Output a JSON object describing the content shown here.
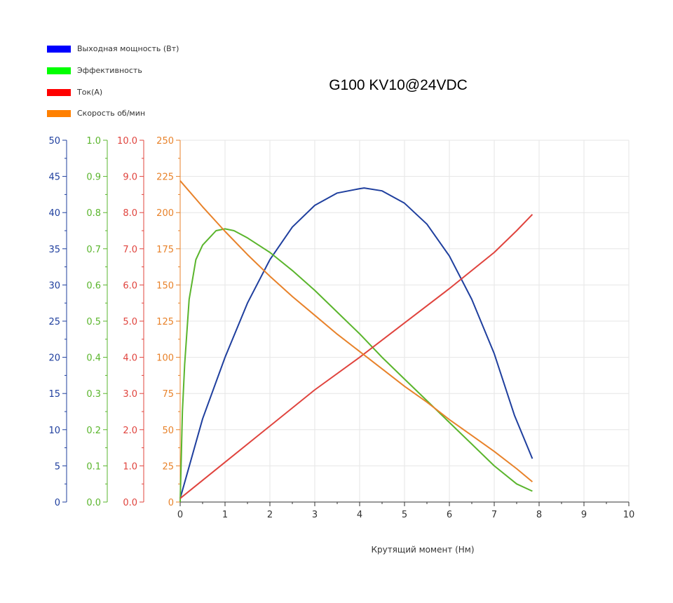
{
  "chart_data": {
    "type": "line",
    "title": "G100 KV10@24VDC",
    "xlabel": "Крутящий момент (Нм)",
    "xlim": [
      0,
      10
    ],
    "x_ticks": [
      "0",
      "1",
      "2",
      "3",
      "4",
      "5",
      "6",
      "7",
      "8",
      "9",
      "10"
    ],
    "grid": true,
    "legend_position": "top-left",
    "axes": [
      {
        "id": "power",
        "color": "#1f3f9e",
        "ylim": [
          0,
          50
        ],
        "tick_labels": [
          "0",
          "5",
          "10",
          "15",
          "20",
          "25",
          "30",
          "35",
          "40",
          "45",
          "50"
        ]
      },
      {
        "id": "efficiency",
        "color": "#5ab52c",
        "ylim": [
          0,
          1
        ],
        "tick_labels": [
          "0.0",
          "0.1",
          "0.2",
          "0.3",
          "0.4",
          "0.5",
          "0.6",
          "0.7",
          "0.8",
          "0.9",
          "1.0"
        ]
      },
      {
        "id": "current",
        "color": "#e0443e",
        "ylim": [
          0,
          10
        ],
        "tick_labels": [
          "0.0",
          "1.0",
          "2.0",
          "3.0",
          "4.0",
          "5.0",
          "6.0",
          "7.0",
          "8.0",
          "9.0",
          "10.0"
        ]
      },
      {
        "id": "speed",
        "color": "#e8822a",
        "ylim": [
          0,
          250
        ],
        "tick_labels": [
          "0",
          "25",
          "50",
          "75",
          "100",
          "125",
          "150",
          "175",
          "200",
          "225",
          "250"
        ]
      }
    ],
    "series": [
      {
        "name": "Выходная мощность (Вт)",
        "axis": "power",
        "color": "#1f3f9e",
        "legend_color": "#0000ff",
        "x": [
          0,
          0.5,
          1,
          1.5,
          2,
          2.5,
          3,
          3.5,
          4,
          4.1,
          4.5,
          5,
          5.5,
          6,
          6.5,
          7,
          7.45,
          7.85
        ],
        "y": [
          0.5,
          11.5,
          20.0,
          27.5,
          33.5,
          38.0,
          41.0,
          42.7,
          43.3,
          43.4,
          43.0,
          41.3,
          38.4,
          34.0,
          28.0,
          20.5,
          12.0,
          6.0
        ]
      },
      {
        "name": "Эффективность",
        "axis": "efficiency",
        "color": "#5ab52c",
        "legend_color": "#00ff00",
        "x": [
          0,
          0.05,
          0.1,
          0.2,
          0.35,
          0.5,
          0.65,
          0.8,
          1.0,
          1.2,
          1.5,
          2.0,
          2.5,
          3.0,
          3.5,
          4.0,
          4.5,
          5.0,
          5.5,
          6.0,
          6.5,
          7.0,
          7.5,
          7.85
        ],
        "y": [
          0.0,
          0.25,
          0.38,
          0.56,
          0.67,
          0.71,
          0.73,
          0.75,
          0.755,
          0.75,
          0.73,
          0.69,
          0.64,
          0.585,
          0.525,
          0.465,
          0.4,
          0.34,
          0.28,
          0.22,
          0.16,
          0.1,
          0.05,
          0.03
        ]
      },
      {
        "name": "Ток(A)",
        "axis": "current",
        "color": "#e0443e",
        "legend_color": "#ff0000",
        "x": [
          0,
          1,
          2,
          3,
          4,
          5,
          6,
          7,
          7.5,
          7.85
        ],
        "y": [
          0.1,
          1.1,
          2.1,
          3.1,
          4.0,
          4.95,
          5.9,
          6.9,
          7.5,
          7.95
        ]
      },
      {
        "name": "Скорость об/мин",
        "axis": "speed",
        "color": "#e8822a",
        "legend_color": "#ff8000",
        "x": [
          0,
          0.5,
          1,
          1.5,
          2,
          2.5,
          3,
          3.5,
          4,
          4.5,
          5,
          5.5,
          6,
          6.5,
          7,
          7.5,
          7.85
        ],
        "y": [
          222,
          204,
          187,
          171,
          156,
          142,
          129,
          116,
          104,
          92,
          80,
          69,
          57,
          46,
          35,
          23,
          14
        ]
      }
    ]
  }
}
